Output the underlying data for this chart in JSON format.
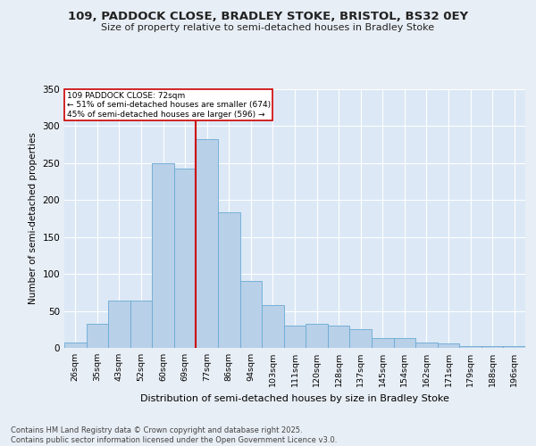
{
  "title_line1": "109, PADDOCK CLOSE, BRADLEY STOKE, BRISTOL, BS32 0EY",
  "title_line2": "Size of property relative to semi-detached houses in Bradley Stoke",
  "xlabel": "Distribution of semi-detached houses by size in Bradley Stoke",
  "ylabel": "Number of semi-detached properties",
  "categories": [
    "26sqm",
    "35sqm",
    "43sqm",
    "52sqm",
    "60sqm",
    "69sqm",
    "77sqm",
    "86sqm",
    "94sqm",
    "103sqm",
    "111sqm",
    "120sqm",
    "128sqm",
    "137sqm",
    "145sqm",
    "154sqm",
    "162sqm",
    "171sqm",
    "179sqm",
    "188sqm",
    "196sqm"
  ],
  "values": [
    7,
    33,
    64,
    64,
    250,
    243,
    283,
    183,
    90,
    58,
    30,
    32,
    30,
    25,
    13,
    13,
    7,
    6,
    3,
    2,
    2
  ],
  "bar_color": "#b8d0e8",
  "bar_edge_color": "#6aaad4",
  "vline_color": "#cc0000",
  "annotation_title": "109 PADDOCK CLOSE: 72sqm",
  "annotation_line1": "← 51% of semi-detached houses are smaller (674)",
  "annotation_line2": "45% of semi-detached houses are larger (596) →",
  "annotation_box_color": "#cc0000",
  "ylim": [
    0,
    350
  ],
  "yticks": [
    0,
    50,
    100,
    150,
    200,
    250,
    300,
    350
  ],
  "footer": "Contains HM Land Registry data © Crown copyright and database right 2025.\nContains public sector information licensed under the Open Government Licence v3.0.",
  "background_color": "#e8eef5",
  "plot_bg_color": "#dce8f5",
  "grid_color": "#ffffff"
}
